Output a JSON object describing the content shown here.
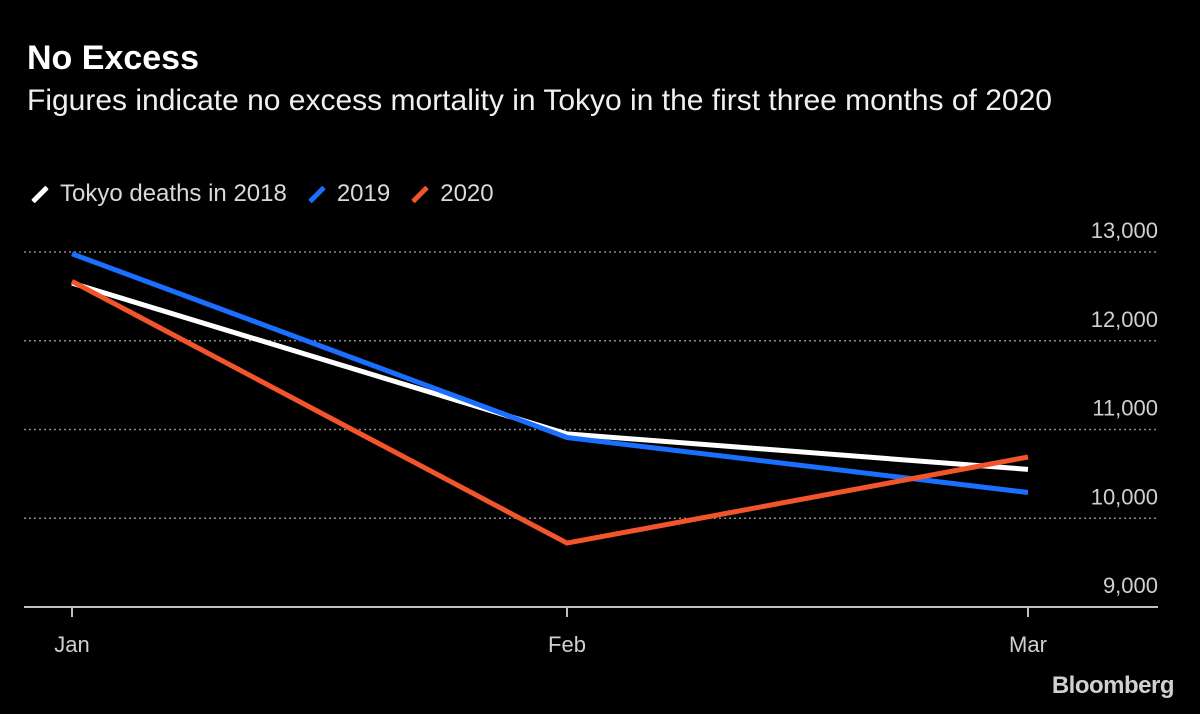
{
  "header": {
    "title": "No Excess",
    "subtitle": "Figures indicate no excess mortality in Tokyo in the first three months of 2020"
  },
  "brand": "Bloomberg",
  "chart_data": {
    "type": "line",
    "categories": [
      "Jan",
      "Feb",
      "Mar"
    ],
    "series": [
      {
        "name": "Tokyo deaths in 2018",
        "color": "#ffffff",
        "values": [
          12650,
          10950,
          10550
        ]
      },
      {
        "name": "2019",
        "color": "#1a6fff",
        "values": [
          12980,
          10910,
          10290
        ]
      },
      {
        "name": "2020",
        "color": "#f2552c",
        "values": [
          12670,
          9720,
          10690
        ]
      }
    ],
    "yticks": [
      9000,
      10000,
      11000,
      12000,
      13000
    ],
    "ytick_labels": [
      "9,000",
      "10,000",
      "11,000",
      "12,000",
      "13,000"
    ],
    "ylim": [
      9000,
      13000
    ],
    "grid": true,
    "legend_position": "top-left",
    "yaxis_position": "right"
  }
}
